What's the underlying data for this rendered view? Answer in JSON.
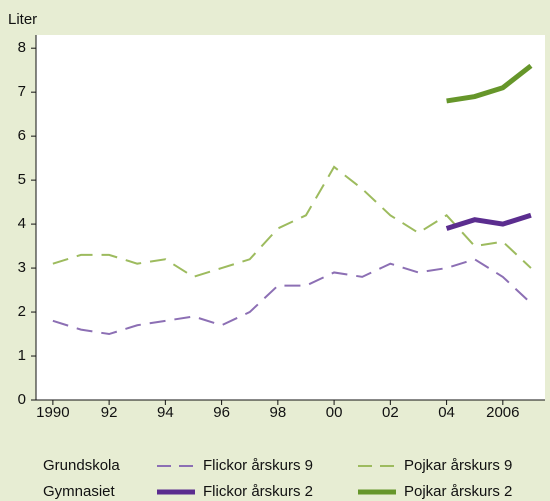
{
  "chart_data": {
    "type": "line",
    "y_label": "Liter",
    "x": [
      1990,
      1991,
      1992,
      1993,
      1994,
      1995,
      1996,
      1997,
      1998,
      1999,
      2000,
      2001,
      2002,
      2003,
      2004,
      2005,
      2006,
      2007
    ],
    "xlim": [
      1989.4,
      2007.5
    ],
    "xticks": [
      1990,
      {
        "value": 1992,
        "label": "92"
      },
      {
        "value": 1994,
        "label": "94"
      },
      {
        "value": 1996,
        "label": "96"
      },
      {
        "value": 1998,
        "label": "98"
      },
      {
        "value": 2000,
        "label": "00"
      },
      {
        "value": 2002,
        "label": "02"
      },
      {
        "value": 2004,
        "label": "04"
      },
      2006
    ],
    "ylim": [
      0,
      8.3
    ],
    "yticks": [
      0,
      1,
      2,
      3,
      4,
      5,
      6,
      7,
      8
    ],
    "legend_groups": [
      "Grundskola",
      "Gymnasiet"
    ],
    "series": [
      {
        "name": "Flickor årskurs 9",
        "color": "#8c6fb4",
        "dashed": true,
        "width": 2,
        "values": [
          1.8,
          1.6,
          1.5,
          1.7,
          1.8,
          1.9,
          1.7,
          2.0,
          2.6,
          2.6,
          2.9,
          2.8,
          3.1,
          2.9,
          3.0,
          3.2,
          2.8,
          2.2
        ]
      },
      {
        "name": "Pojkar årskurs 9",
        "color": "#9dbb5e",
        "dashed": true,
        "width": 2,
        "values": [
          3.1,
          3.3,
          3.3,
          3.1,
          3.2,
          2.8,
          3.0,
          3.2,
          3.9,
          4.2,
          5.3,
          4.8,
          4.2,
          3.8,
          4.2,
          3.5,
          3.6,
          3.0
        ]
      },
      {
        "name": "Flickor årskurs 2",
        "color": "#5b2d8f",
        "dashed": false,
        "width": 5,
        "values": [
          null,
          null,
          null,
          null,
          null,
          null,
          null,
          null,
          null,
          null,
          null,
          null,
          null,
          null,
          3.9,
          4.1,
          4.0,
          4.2
        ]
      },
      {
        "name": "Pojkar årskurs 2",
        "color": "#66962a",
        "dashed": false,
        "width": 5,
        "values": [
          null,
          null,
          null,
          null,
          null,
          null,
          null,
          null,
          null,
          null,
          null,
          null,
          null,
          null,
          6.8,
          6.9,
          7.1,
          7.6
        ]
      }
    ]
  }
}
